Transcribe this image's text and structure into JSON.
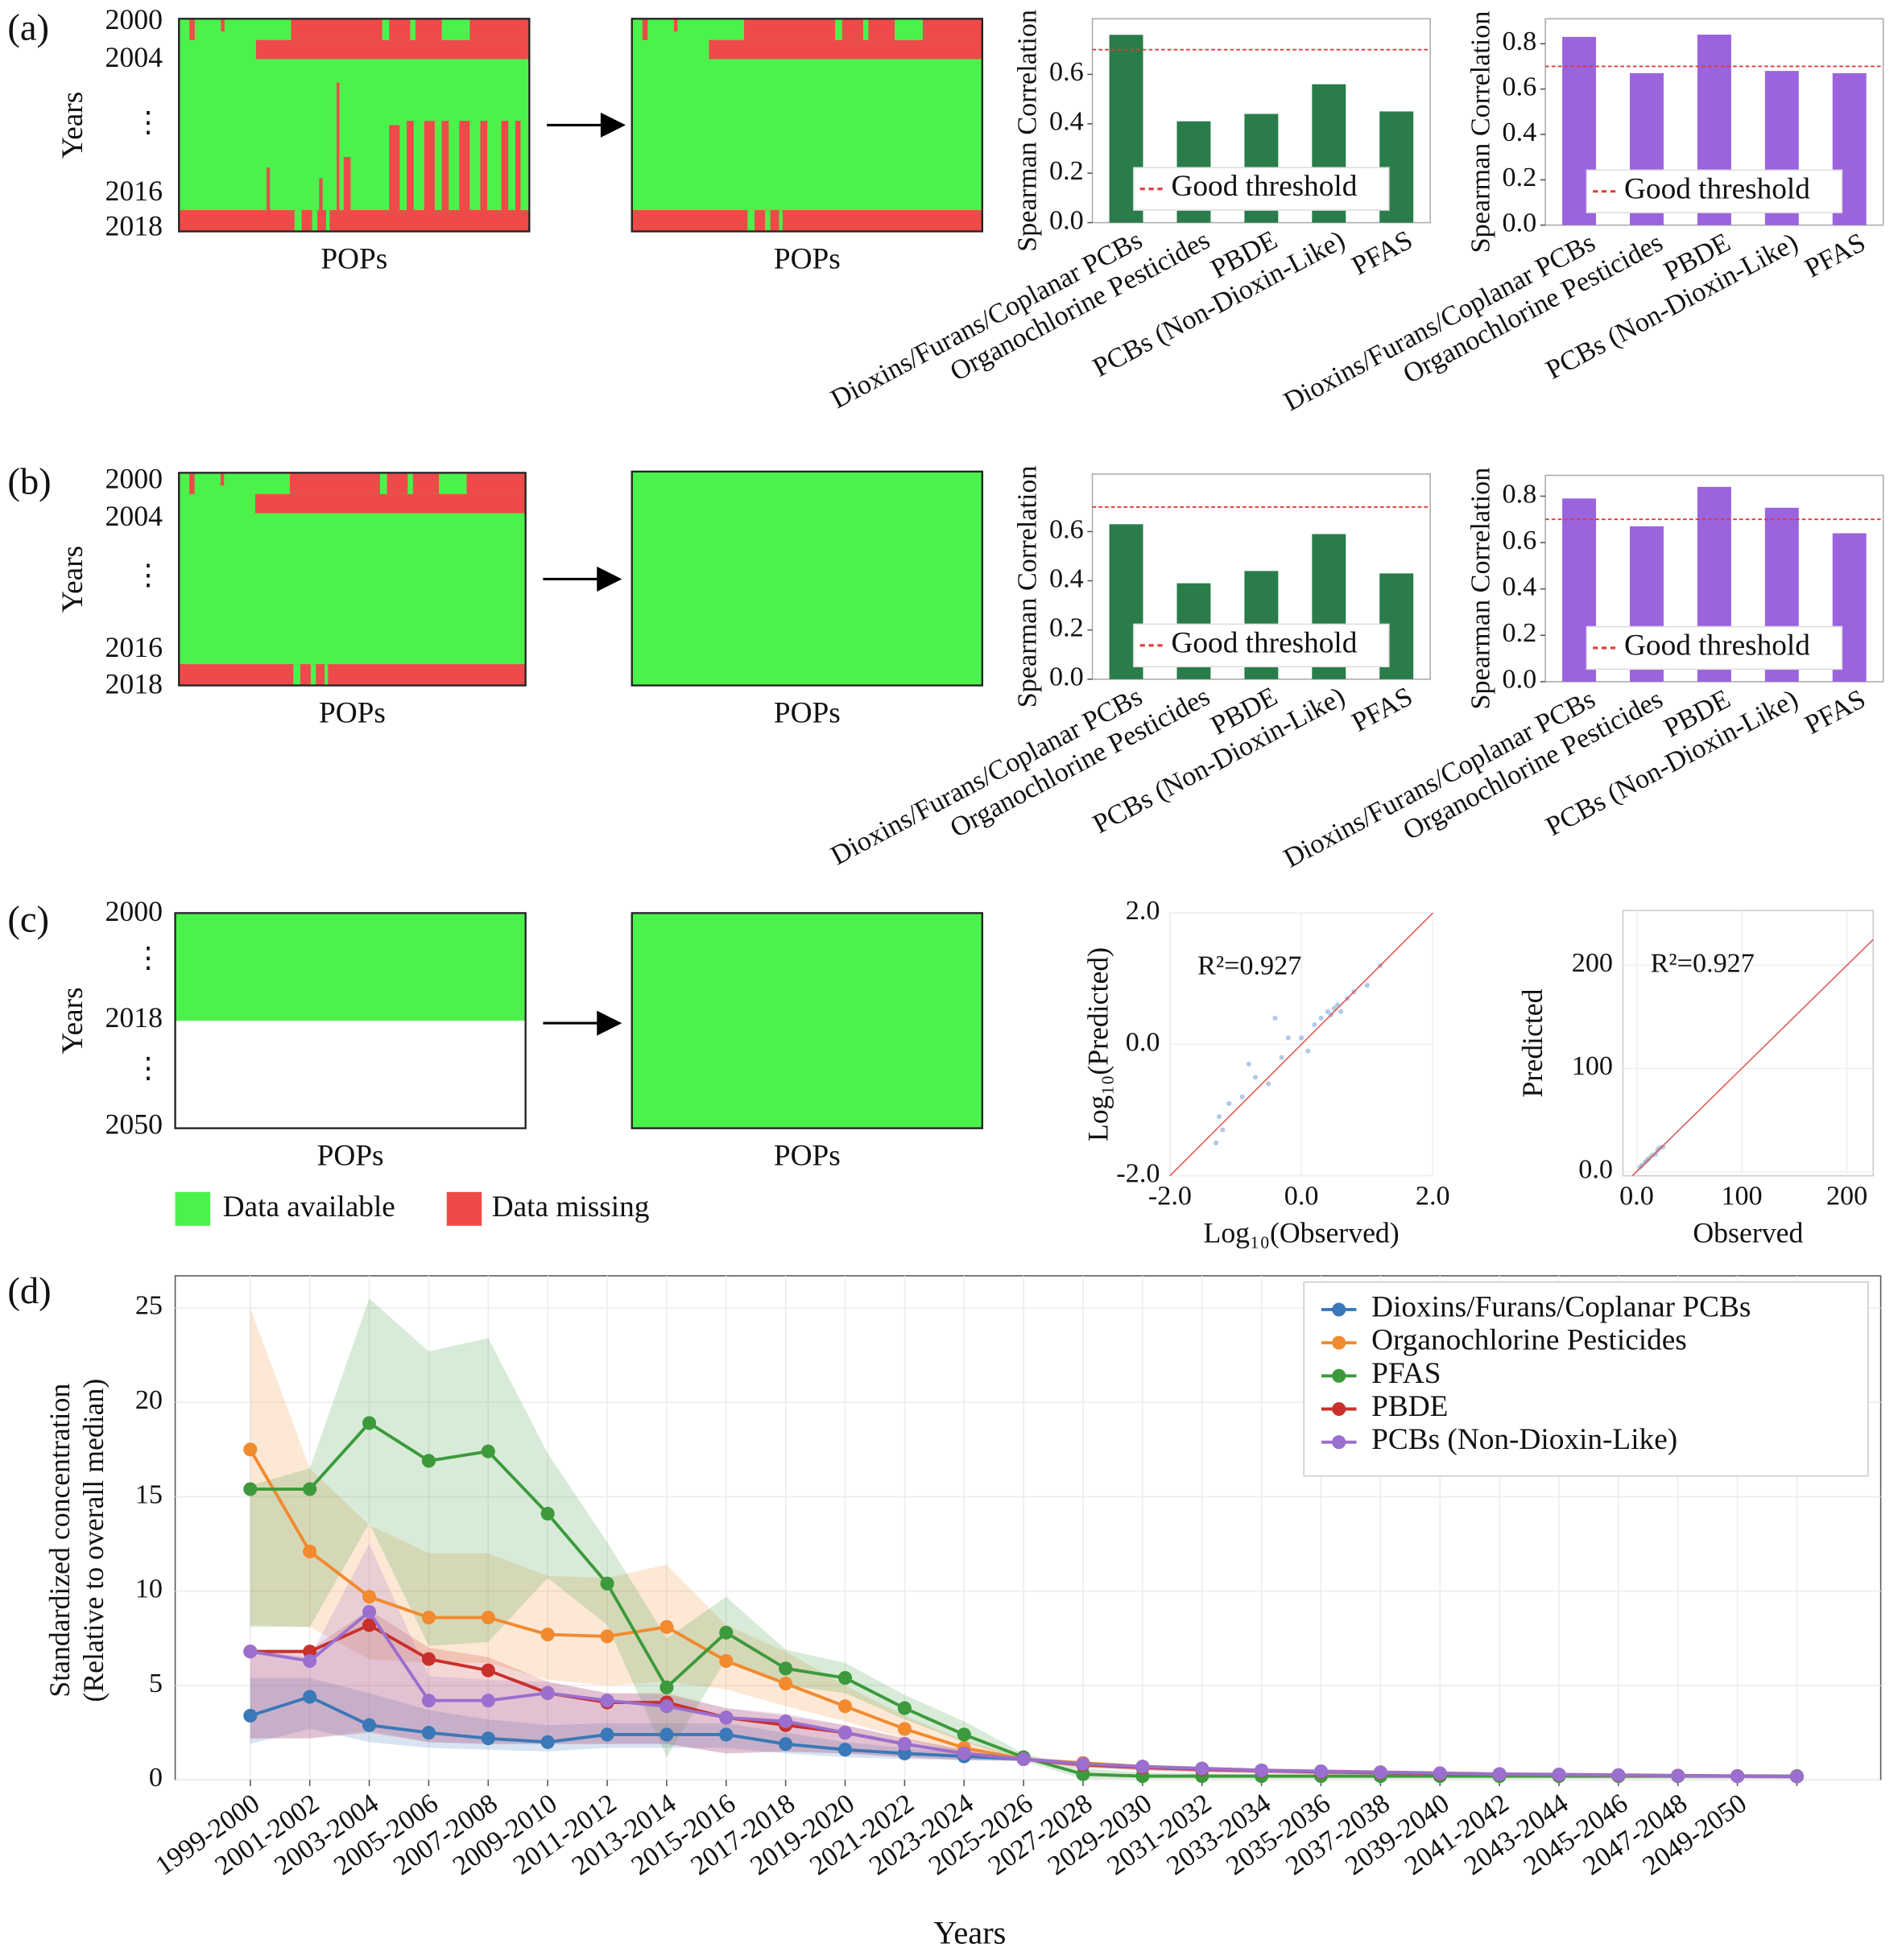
{
  "panel_labels": [
    "(a)",
    "(b)",
    "(c)",
    "(d)"
  ],
  "legend": [
    {
      "name": "Data available",
      "color": "#4cf24c"
    },
    {
      "name": "Data missing",
      "color": "#ee4a4a"
    }
  ],
  "chart_data": [
    {
      "type": "heatmap",
      "year_labels": [
        "2000",
        "2004",
        "⋮",
        "2016",
        "2018"
      ],
      "ylabel": "Years",
      "xlabel": "POPs"
    },
    {
      "type": "heatmap",
      "xlabel": "POPs"
    },
    {
      "type": "bar",
      "ylabel": "Spearman Correlation",
      "categories": [
        "Dioxins/Furans/Coplanar PCBs",
        "Organochlorine Pesticides",
        "PBDE",
        "PCBs  (Non-Dioxin-Like)",
        "PFAS"
      ],
      "values": [
        0.76,
        0.41,
        0.44,
        0.56,
        0.45
      ],
      "color": "#2a7d4a",
      "ylim": [
        0,
        0.825
      ],
      "yticks": [
        {
          "value": 0,
          "label": "0.0"
        },
        0.2,
        0.4,
        0.6
      ],
      "threshold": 0.7,
      "threshold_label": "Good threshold",
      "threshold_color": "#e03a3a",
      "legend": "lower center"
    },
    {
      "type": "bar",
      "ylabel": "Spearman Correlation",
      "categories": [
        "Dioxins/Furans/Coplanar PCBs",
        "Organochlorine Pesticides",
        "PBDE",
        "PCBs  (Non-Dioxin-Like)",
        "PFAS"
      ],
      "values": [
        0.83,
        0.67,
        0.84,
        0.68,
        0.67
      ],
      "color": "#9b63de",
      "ylim": [
        0,
        0.91
      ],
      "yticks": [
        {
          "value": 0,
          "label": "0.0"
        },
        0.2,
        0.4,
        0.6,
        0.8
      ],
      "threshold": 0.7,
      "threshold_label": "Good threshold",
      "threshold_color": "#e03a3a",
      "legend": "lower center"
    },
    {
      "type": "heatmap",
      "year_labels": [
        "2000",
        "2004",
        "⋮",
        "2016",
        "2018"
      ],
      "ylabel": "Years",
      "xlabel": "POPs"
    },
    {
      "type": "heatmap",
      "xlabel": "POPs"
    },
    {
      "type": "bar",
      "ylabel": "Spearman Correlation",
      "categories": [
        "Dioxins/Furans/Coplanar PCBs",
        "Organochlorine Pesticides",
        "PBDE",
        "PCBs  (Non-Dioxin-Like)",
        "PFAS"
      ],
      "values": [
        0.63,
        0.39,
        0.44,
        0.59,
        0.43
      ],
      "color": "#2a7d4a",
      "ylim": [
        0,
        0.834
      ],
      "yticks": [
        {
          "value": 0,
          "label": "0.0"
        },
        0.2,
        0.4,
        0.6
      ],
      "threshold": 0.7,
      "threshold_label": "Good threshold",
      "threshold_color": "#e03a3a",
      "legend": "lower center"
    },
    {
      "type": "bar",
      "ylabel": "Spearman Correlation",
      "categories": [
        "Dioxins/Furans/Coplanar PCBs",
        "Organochlorine Pesticides",
        "PBDE",
        "PCBs  (Non-Dioxin-Like)",
        "PFAS"
      ],
      "values": [
        0.79,
        0.67,
        0.84,
        0.75,
        0.64
      ],
      "color": "#9b63de",
      "ylim": [
        0,
        0.89
      ],
      "yticks": [
        {
          "value": 0,
          "label": "0.0"
        },
        0.2,
        0.4,
        0.6,
        0.8
      ],
      "threshold": 0.7,
      "threshold_label": "Good threshold",
      "threshold_color": "#e03a3a",
      "legend": "lower center"
    },
    {
      "type": "heatmap",
      "year_labels": [
        "2000",
        "⋮",
        "2018",
        "⋮",
        "2050"
      ],
      "ylabel": "Years",
      "xlabel": "POPs"
    },
    {
      "type": "heatmap",
      "xlabel": "POPs"
    },
    {
      "type": "scatter",
      "xlabel": "Log₁₀(Observed)",
      "ylabel": "Log₁₀(Predicted)",
      "annotation": "R²=0.927",
      "color": "#7fa6d6",
      "line_color": "#e05555",
      "identity_line": true,
      "x": [
        -1.3,
        -1.25,
        -1.2,
        -1.1,
        -0.9,
        -0.7,
        -0.5,
        -0.3,
        -0.2,
        0.0,
        0.1,
        0.2,
        0.3,
        0.4,
        0.5,
        0.6,
        0.7,
        0.8,
        1.0,
        1.2,
        -0.8,
        -0.4,
        0.45,
        0.55
      ],
      "y": [
        -1.5,
        -1.1,
        -1.3,
        -0.9,
        -0.8,
        -0.5,
        -0.6,
        -0.2,
        0.1,
        0.1,
        -0.1,
        0.3,
        0.4,
        0.5,
        0.55,
        0.5,
        0.7,
        0.8,
        0.9,
        1.2,
        -0.3,
        0.4,
        0.45,
        0.6
      ],
      "xlim": [
        -2,
        2
      ],
      "ylim": [
        -2,
        2
      ],
      "xticks": [
        {
          "value": -2,
          "label": "-2.0"
        },
        {
          "value": 0,
          "label": "0.0"
        },
        {
          "value": 2,
          "label": "2.0"
        }
      ],
      "yticks": [
        {
          "value": -2,
          "label": "-2.0"
        },
        {
          "value": 0,
          "label": "0.0"
        },
        {
          "value": 2,
          "label": "2.0"
        }
      ]
    },
    {
      "type": "scatter",
      "xlabel": "Observed",
      "ylabel": "Predicted",
      "annotation": "R²=0.927",
      "color": "#7fa6d6",
      "line_color": "#e05555",
      "identity_line": true,
      "x": [
        3,
        5,
        8,
        10,
        12,
        15,
        18,
        20,
        22,
        25
      ],
      "y": [
        4,
        6,
        9,
        11,
        13,
        16,
        17,
        21,
        23,
        24
      ],
      "xlim": [
        -13,
        225
      ],
      "ylim": [
        -4,
        253
      ],
      "xticks": [
        {
          "value": 0,
          "label": "0.0"
        },
        100,
        200
      ],
      "yticks": [
        {
          "value": 0,
          "label": "0.0"
        },
        100,
        200
      ]
    },
    {
      "type": "line",
      "xlabel": "Years",
      "ylabel": [
        "Standardized concentration",
        "(Relative to overall median)"
      ],
      "grid": true,
      "legend": "upper right",
      "categories": [
        "1999-2000",
        "2001-2002",
        "2003-2004",
        "2005-2006",
        "2007-2008",
        "2009-2010",
        "2011-2012",
        "2013-2014",
        "2015-2016",
        "2017-2018",
        "2019-2020",
        "2021-2022",
        "2023-2024",
        "2025-2026",
        "2027-2028",
        "2029-2030",
        "2031-2032",
        "2033-2034",
        "2035-2036",
        "2037-2038",
        "2039-2040",
        "2041-2042",
        "2043-2044",
        "2045-2046",
        "2047-2048",
        "2049-2050",
        null
      ],
      "ylim": [
        0,
        26.7
      ],
      "yticks": [
        0,
        5,
        10,
        15,
        20,
        25
      ],
      "series": [
        {
          "name": "Dioxins/Furans/Coplanar PCBs",
          "color": "#3a78b8",
          "values": [
            3.4,
            4.4,
            2.9,
            2.5,
            2.2,
            2.0,
            2.4,
            2.4,
            2.4,
            1.9,
            1.6,
            1.4,
            1.25,
            1.1,
            0.85,
            0.7,
            0.6,
            0.5,
            0.45,
            0.4,
            0.35,
            0.3,
            0.28,
            0.25,
            0.22,
            0.2,
            0.18
          ],
          "upper": [
            5.4,
            5.4,
            4.6,
            3.7,
            3.2,
            2.9,
            3.0,
            3.0,
            3.0,
            2.5,
            2.0,
            1.7,
            1.4,
            1.15,
            0.95,
            0.8,
            0.7,
            0.6,
            0.55,
            0.5,
            0.45,
            0.4,
            0.38,
            0.35,
            0.32,
            0.3,
            0.28
          ],
          "lower": [
            1.9,
            2.7,
            2.0,
            1.7,
            1.6,
            1.5,
            1.7,
            1.7,
            1.7,
            1.4,
            1.2,
            1.1,
            1.05,
            1.0,
            0.75,
            0.6,
            0.5,
            0.4,
            0.35,
            0.3,
            0.25,
            0.2,
            0.18,
            0.15,
            0.12,
            0.1,
            0.08
          ]
        },
        {
          "name": "Organochlorine Pesticides",
          "color": "#f28a2e",
          "values": [
            17.5,
            12.1,
            9.7,
            8.6,
            8.6,
            7.7,
            7.6,
            8.1,
            6.3,
            5.1,
            3.9,
            2.7,
            1.7,
            1.1,
            0.9,
            0.7,
            0.6,
            0.5,
            0.45,
            0.4,
            0.35,
            0.3,
            0.28,
            0.25,
            0.22,
            0.2,
            0.18
          ],
          "upper": [
            25,
            16.5,
            13.5,
            12,
            12,
            10.8,
            10.7,
            11.4,
            8.2,
            6.8,
            5,
            3.4,
            2.1,
            1.2,
            1.0,
            0.8,
            0.7,
            0.6,
            0.55,
            0.5,
            0.45,
            0.4,
            0.38,
            0.35,
            0.32,
            0.3,
            0.28
          ],
          "lower": [
            8.2,
            8.1,
            6.4,
            6.2,
            6.2,
            5.3,
            5,
            5.2,
            4.8,
            3.9,
            3.1,
            2.2,
            1.4,
            1.0,
            0.8,
            0.6,
            0.5,
            0.4,
            0.35,
            0.3,
            0.25,
            0.2,
            0.18,
            0.15,
            0.12,
            0.1,
            0.08
          ]
        },
        {
          "name": "PFAS",
          "color": "#3c9a3c",
          "values": [
            15.4,
            15.4,
            18.9,
            16.9,
            17.4,
            14.1,
            10.4,
            4.9,
            7.8,
            5.9,
            5.4,
            3.8,
            2.4,
            1.2,
            0.3,
            0.2,
            0.2,
            0.2,
            0.2,
            0.2,
            0.2,
            0.2,
            0.2,
            0.2,
            0.2,
            0.2,
            0.2
          ],
          "upper": [
            15.6,
            16.5,
            25.5,
            22.7,
            23.4,
            17.3,
            12.6,
            7.5,
            9.7,
            6.9,
            6.2,
            4.5,
            3.1,
            1.4,
            0.6,
            0.4,
            0.35,
            0.3,
            0.3,
            0.3,
            0.3,
            0.3,
            0.3,
            0.3,
            0.3,
            0.3,
            0.3
          ],
          "lower": [
            8.1,
            8.1,
            13.6,
            7.1,
            7.3,
            10.7,
            8.2,
            1.2,
            6.4,
            5.0,
            4.6,
            3.2,
            2.0,
            1.0,
            0.05,
            0.05,
            0.05,
            0.05,
            0.05,
            0.05,
            0.05,
            0.05,
            0.05,
            0.05,
            0.05,
            0.05,
            0.05
          ]
        },
        {
          "name": "PBDE",
          "color": "#c9302c",
          "values": [
            6.8,
            6.8,
            8.2,
            6.4,
            5.8,
            4.6,
            4.1,
            4.1,
            3.3,
            2.9,
            2.5,
            1.9,
            1.4,
            1.1,
            0.8,
            0.65,
            0.55,
            0.48,
            0.42,
            0.38,
            0.33,
            0.3,
            0.27,
            0.24,
            0.22,
            0.2,
            0.18
          ],
          "upper": [
            6.9,
            6.9,
            9,
            7,
            6.5,
            5.2,
            4.6,
            4.6,
            3.8,
            3.4,
            2.9,
            2.2,
            1.6,
            1.15,
            0.95,
            0.8,
            0.7,
            0.6,
            0.55,
            0.5,
            0.45,
            0.4,
            0.38,
            0.35,
            0.32,
            0.3,
            0.28
          ],
          "lower": [
            2.2,
            2.2,
            2.5,
            2.0,
            1.9,
            1.9,
            1.9,
            1.9,
            1.4,
            1.5,
            1.4,
            1.2,
            1.05,
            1.0,
            0.65,
            0.5,
            0.4,
            0.35,
            0.3,
            0.28,
            0.22,
            0.2,
            0.17,
            0.15,
            0.12,
            0.1,
            0.08
          ]
        },
        {
          "name": "PCBs (Non-Dioxin-Like)",
          "color": "#9a6fcf",
          "values": [
            6.8,
            6.3,
            8.9,
            4.2,
            4.2,
            4.6,
            4.2,
            3.9,
            3.3,
            3.1,
            2.5,
            1.9,
            1.4,
            1.1,
            0.85,
            0.7,
            0.6,
            0.5,
            0.45,
            0.4,
            0.35,
            0.3,
            0.28,
            0.25,
            0.22,
            0.2,
            0.18
          ],
          "upper": [
            6.9,
            6.5,
            12.5,
            5.5,
            5.3,
            5.2,
            4.6,
            4.5,
            3.8,
            3.5,
            2.9,
            2.2,
            1.6,
            1.15,
            0.95,
            0.8,
            0.7,
            0.6,
            0.55,
            0.5,
            0.45,
            0.4,
            0.38,
            0.35,
            0.32,
            0.3,
            0.28
          ],
          "lower": [
            2.2,
            2.2,
            2.6,
            2.0,
            1.9,
            1.9,
            1.9,
            1.9,
            1.4,
            1.5,
            1.4,
            1.2,
            1.05,
            1.0,
            0.65,
            0.5,
            0.4,
            0.35,
            0.3,
            0.28,
            0.22,
            0.2,
            0.17,
            0.15,
            0.12,
            0.1,
            0.08
          ]
        }
      ]
    }
  ]
}
